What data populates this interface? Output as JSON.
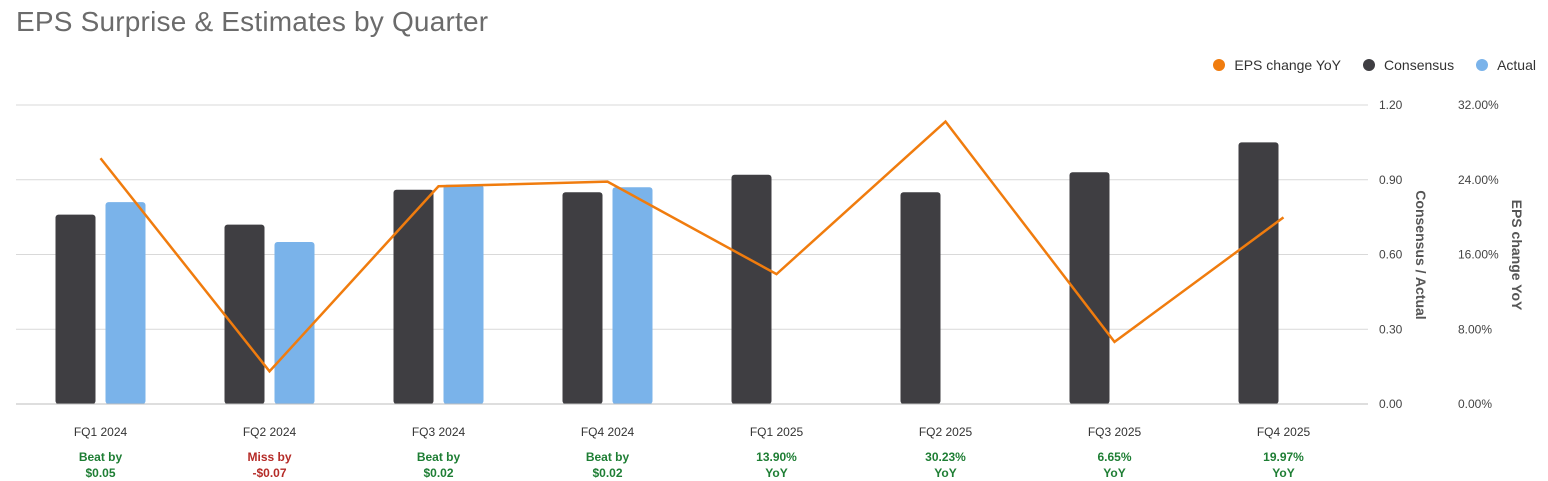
{
  "title": "EPS Surprise & Estimates by Quarter",
  "legend": [
    {
      "label": "EPS change YoY",
      "color": "#f07c0e"
    },
    {
      "label": "Consensus",
      "color": "#3f3e42"
    },
    {
      "label": "Actual",
      "color": "#7ab3ea"
    }
  ],
  "colors": {
    "beat": "#1e7e34",
    "miss": "#b52b27",
    "grid": "#d9d9d9"
  },
  "chart_data": {
    "type": "bar",
    "title": "EPS Surprise & Estimates by Quarter",
    "categories": [
      "FQ1 2024",
      "FQ2 2024",
      "FQ3 2024",
      "FQ4 2024",
      "FQ1 2025",
      "FQ2 2025",
      "FQ3 2025",
      "FQ4 2025"
    ],
    "series": [
      {
        "name": "Consensus",
        "type": "bar",
        "axis": "left",
        "color": "#3f3e42",
        "values": [
          0.76,
          0.72,
          0.86,
          0.85,
          0.92,
          0.85,
          0.93,
          1.05
        ]
      },
      {
        "name": "Actual",
        "type": "bar",
        "axis": "left",
        "color": "#7ab3ea",
        "values": [
          0.81,
          0.65,
          0.88,
          0.87,
          null,
          null,
          null,
          null
        ]
      },
      {
        "name": "EPS change YoY",
        "type": "line",
        "axis": "right",
        "color": "#f07c0e",
        "values": [
          26.3,
          3.5,
          23.3,
          23.8,
          13.9,
          30.23,
          6.65,
          19.97
        ]
      }
    ],
    "y_left": {
      "label": "Consensus / Actual",
      "range": [
        0,
        1.2
      ],
      "ticks": [
        "0.00",
        "0.30",
        "0.60",
        "0.90",
        "1.20"
      ],
      "tick_values": [
        0,
        0.3,
        0.6,
        0.9,
        1.2
      ]
    },
    "y_right": {
      "label": "EPS change YoY",
      "range": [
        0,
        32
      ],
      "ticks": [
        "0.00%",
        "8.00%",
        "16.00%",
        "24.00%",
        "32.00%"
      ],
      "tick_values": [
        0,
        8,
        16,
        24,
        32
      ]
    },
    "notes": [
      {
        "line1": "Beat by",
        "line2": "$0.05",
        "status": "beat"
      },
      {
        "line1": "Miss by",
        "line2": "-$0.07",
        "status": "miss"
      },
      {
        "line1": "Beat by",
        "line2": "$0.02",
        "status": "beat"
      },
      {
        "line1": "Beat by",
        "line2": "$0.02",
        "status": "beat"
      },
      {
        "line1": "13.90%",
        "line2": "YoY",
        "status": "beat"
      },
      {
        "line1": "30.23%",
        "line2": "YoY",
        "status": "beat"
      },
      {
        "line1": "6.65%",
        "line2": "YoY",
        "status": "beat"
      },
      {
        "line1": "19.97%",
        "line2": "YoY",
        "status": "beat"
      }
    ],
    "grid": true,
    "legend_position": "top-right"
  }
}
